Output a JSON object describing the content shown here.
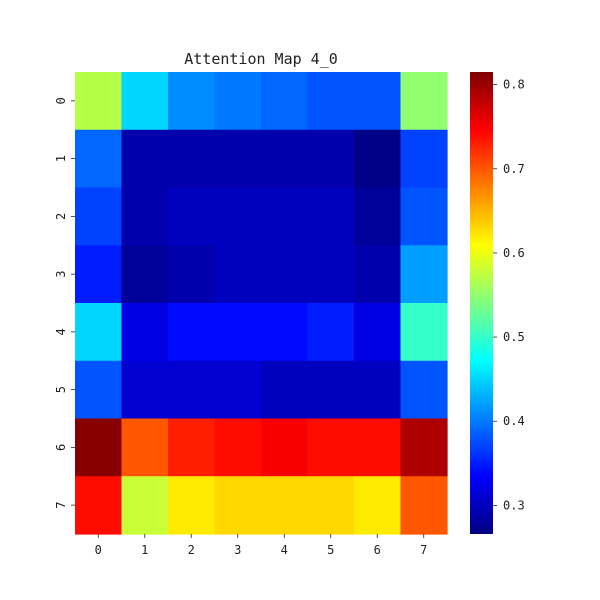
{
  "chart_data": {
    "type": "heatmap",
    "title": "Attention Map 4_0",
    "xlabel": "",
    "ylabel": "",
    "x_categories": [
      "0",
      "1",
      "2",
      "3",
      "4",
      "5",
      "6",
      "7"
    ],
    "y_categories": [
      "0",
      "1",
      "2",
      "3",
      "4",
      "5",
      "6",
      "7"
    ],
    "values": [
      [
        0.57,
        0.45,
        0.41,
        0.4,
        0.39,
        0.38,
        0.38,
        0.55
      ],
      [
        0.39,
        0.29,
        0.29,
        0.29,
        0.29,
        0.29,
        0.27,
        0.37
      ],
      [
        0.37,
        0.29,
        0.3,
        0.3,
        0.3,
        0.3,
        0.28,
        0.38
      ],
      [
        0.35,
        0.28,
        0.29,
        0.3,
        0.3,
        0.3,
        0.29,
        0.42
      ],
      [
        0.45,
        0.32,
        0.34,
        0.34,
        0.34,
        0.35,
        0.32,
        0.5
      ],
      [
        0.38,
        0.31,
        0.31,
        0.31,
        0.3,
        0.3,
        0.3,
        0.38
      ],
      [
        0.81,
        0.7,
        0.73,
        0.74,
        0.75,
        0.74,
        0.74,
        0.79
      ],
      [
        0.74,
        0.58,
        0.62,
        0.63,
        0.63,
        0.63,
        0.62,
        0.7
      ]
    ],
    "vmin": 0.266,
    "vmax": 0.815,
    "colormap": "jet",
    "colorbar_ticks": [
      0.3,
      0.4,
      0.5,
      0.6,
      0.7,
      0.8
    ],
    "colorbar_tick_labels": [
      "0.3",
      "0.4",
      "0.5",
      "0.6",
      "0.7",
      "0.8"
    ],
    "grid": false,
    "legend": "colorbar-right"
  }
}
